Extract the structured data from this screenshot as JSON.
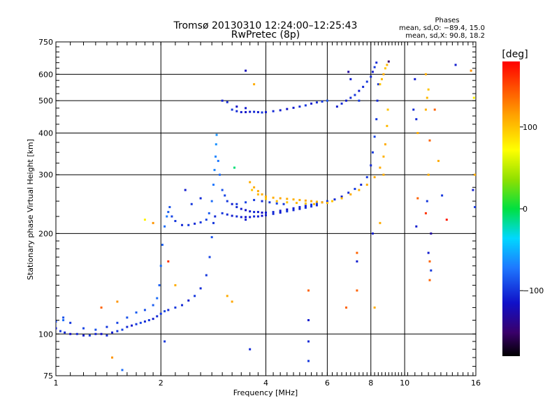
{
  "header": {
    "title_line1": "Tromsø 20130310 12:24:00–12:25:43",
    "title_line2": "RwPretec (8p)",
    "phases_title": "Phases",
    "phases_o": "mean, sd,O: −89.4, 15.0",
    "phases_x": "mean, sd,X:  90.8, 18.2"
  },
  "colorbar": {
    "unit_label": "[deg]",
    "ticks": [
      {
        "value": 100,
        "label": "100"
      },
      {
        "value": 0,
        "label": "0"
      },
      {
        "value": -100,
        "label": "−100"
      }
    ],
    "range": [
      -180,
      180
    ]
  },
  "chart_data": {
    "type": "scatter",
    "title": "Tromsø 20130310 12:24:00–12:25:43",
    "subtitle": "RwPretec (8p)",
    "xlabel": "Frequency [MHz]",
    "ylabel": "Stationary phase Virtual Height [km]",
    "xscale": "log",
    "yscale": "log",
    "xlim": [
      1,
      16
    ],
    "ylim": [
      75,
      750
    ],
    "xticks": [
      {
        "value": 1,
        "label": "1"
      },
      {
        "value": 2,
        "label": "2"
      },
      {
        "value": 4,
        "label": "4"
      },
      {
        "value": 6,
        "label": "6"
      },
      {
        "value": 8,
        "label": "8"
      },
      {
        "value": 10,
        "label": "10"
      },
      {
        "value": 16,
        "label": "16"
      }
    ],
    "yticks": [
      {
        "value": 75,
        "label": "75"
      },
      {
        "value": 100,
        "label": "100"
      },
      {
        "value": 200,
        "label": "200"
      },
      {
        "value": 300,
        "label": "300"
      },
      {
        "value": 400,
        "label": "400"
      },
      {
        "value": 500,
        "label": "500"
      },
      {
        "value": 600,
        "label": "600"
      },
      {
        "value": 750,
        "label": "750"
      }
    ],
    "x_gridlines": [
      1,
      2,
      4,
      6,
      8,
      10,
      16
    ],
    "y_gridlines": [
      75,
      100,
      200,
      300,
      400,
      500,
      600,
      750
    ],
    "grid": true,
    "color_by": "phase [deg]",
    "points": [
      [
        1.0,
        104,
        -110
      ],
      [
        1.03,
        102,
        -100
      ],
      [
        1.06,
        101,
        -105
      ],
      [
        1.1,
        100,
        -115
      ],
      [
        1.15,
        100,
        -105
      ],
      [
        1.2,
        99,
        -110
      ],
      [
        1.25,
        99,
        -100
      ],
      [
        1.3,
        100,
        -108
      ],
      [
        1.35,
        100,
        -115
      ],
      [
        1.4,
        99,
        -105
      ],
      [
        1.45,
        101,
        -110
      ],
      [
        1.5,
        102,
        -100
      ],
      [
        1.55,
        103,
        -95
      ],
      [
        1.6,
        105,
        -105
      ],
      [
        1.65,
        106,
        -110
      ],
      [
        1.7,
        107,
        -100
      ],
      [
        1.75,
        108,
        -95
      ],
      [
        1.8,
        109,
        -105
      ],
      [
        1.85,
        110,
        -100
      ],
      [
        1.9,
        111,
        -110
      ],
      [
        1.95,
        113,
        -105
      ],
      [
        2.0,
        115,
        -100
      ],
      [
        2.05,
        117,
        -95
      ],
      [
        2.1,
        118,
        -105
      ],
      [
        2.2,
        120,
        -100
      ],
      [
        2.3,
        122,
        -105
      ],
      [
        2.4,
        126,
        -110
      ],
      [
        2.5,
        130,
        -100
      ],
      [
        2.6,
        137,
        -105
      ],
      [
        2.7,
        150,
        -100
      ],
      [
        2.76,
        170,
        -95
      ],
      [
        2.8,
        195,
        -90
      ],
      [
        2.83,
        215,
        -100
      ],
      [
        2.86,
        225,
        -105
      ],
      [
        1.0,
        109,
        -95
      ],
      [
        1.05,
        112,
        -90
      ],
      [
        1.1,
        108,
        -100
      ],
      [
        1.2,
        104,
        -95
      ],
      [
        1.3,
        103,
        -90
      ],
      [
        1.4,
        105,
        -100
      ],
      [
        1.5,
        108,
        -95
      ],
      [
        1.6,
        112,
        -90
      ],
      [
        1.7,
        116,
        -85
      ],
      [
        1.8,
        118,
        -90
      ],
      [
        1.9,
        122,
        -85
      ],
      [
        1.95,
        128,
        -80
      ],
      [
        1.98,
        140,
        -85
      ],
      [
        2.0,
        160,
        -80
      ],
      [
        2.02,
        185,
        -85
      ],
      [
        2.05,
        210,
        -80
      ],
      [
        2.08,
        225,
        -75
      ],
      [
        2.1,
        232,
        -85
      ],
      [
        2.12,
        240,
        -90
      ],
      [
        2.15,
        225,
        -95
      ],
      [
        2.2,
        218,
        -100
      ],
      [
        2.3,
        212,
        -105
      ],
      [
        2.4,
        212,
        -100
      ],
      [
        2.5,
        214,
        -105
      ],
      [
        2.6,
        216,
        -100
      ],
      [
        2.7,
        220,
        -95
      ],
      [
        2.75,
        230,
        -85
      ],
      [
        2.8,
        250,
        -80
      ],
      [
        2.83,
        280,
        -75
      ],
      [
        2.85,
        310,
        -70
      ],
      [
        2.87,
        340,
        -70
      ],
      [
        2.88,
        370,
        -65
      ],
      [
        2.89,
        395,
        -65
      ],
      [
        2.92,
        330,
        -75
      ],
      [
        2.95,
        300,
        -80
      ],
      [
        3.0,
        270,
        -90
      ],
      [
        3.05,
        260,
        -95
      ],
      [
        3.1,
        250,
        -100
      ],
      [
        3.2,
        245,
        -110
      ],
      [
        3.3,
        240,
        -105
      ],
      [
        3.4,
        237,
        -110
      ],
      [
        3.5,
        235,
        -115
      ],
      [
        3.6,
        233,
        -110
      ],
      [
        3.7,
        232,
        -105
      ],
      [
        3.8,
        232,
        -110
      ],
      [
        3.9,
        231,
        -115
      ],
      [
        4.0,
        231,
        -110
      ],
      [
        4.2,
        232,
        -105
      ],
      [
        4.4,
        234,
        -110
      ],
      [
        4.6,
        236,
        -115
      ],
      [
        4.8,
        238,
        -110
      ],
      [
        5.0,
        240,
        -105
      ],
      [
        5.2,
        242,
        -110
      ],
      [
        5.4,
        244,
        -100
      ],
      [
        5.6,
        246,
        -95
      ],
      [
        5.8,
        248,
        -90
      ],
      [
        6.0,
        250,
        -100
      ],
      [
        6.3,
        253,
        -105
      ],
      [
        6.6,
        258,
        -110
      ],
      [
        6.9,
        265,
        -105
      ],
      [
        7.2,
        272,
        -100
      ],
      [
        7.5,
        280,
        -105
      ],
      [
        7.8,
        295,
        -100
      ],
      [
        8.0,
        320,
        -105
      ],
      [
        8.1,
        350,
        -100
      ],
      [
        8.2,
        390,
        -95
      ],
      [
        8.3,
        440,
        -100
      ],
      [
        8.35,
        500,
        -105
      ],
      [
        8.4,
        560,
        -100
      ],
      [
        3.0,
        230,
        -100
      ],
      [
        3.1,
        228,
        -105
      ],
      [
        3.2,
        226,
        -110
      ],
      [
        3.3,
        225,
        -105
      ],
      [
        3.4,
        224,
        -110
      ],
      [
        3.5,
        224,
        -115
      ],
      [
        3.6,
        224,
        -110
      ],
      [
        3.7,
        225,
        -105
      ],
      [
        3.8,
        225,
        -110
      ],
      [
        3.9,
        226,
        -115
      ],
      [
        4.0,
        227,
        -110
      ],
      [
        4.2,
        229,
        -105
      ],
      [
        4.4,
        231,
        -110
      ],
      [
        4.6,
        233,
        -100
      ],
      [
        4.8,
        235,
        -105
      ],
      [
        5.0,
        237,
        -110
      ],
      [
        5.2,
        239,
        -105
      ],
      [
        5.4,
        241,
        -100
      ],
      [
        5.6,
        243,
        -105
      ],
      [
        3.3,
        245,
        -100
      ],
      [
        3.5,
        248,
        -95
      ],
      [
        3.7,
        252,
        -100
      ],
      [
        3.9,
        250,
        -105
      ],
      [
        4.1,
        248,
        -100
      ],
      [
        4.3,
        246,
        -95
      ],
      [
        4.5,
        245,
        -100
      ],
      [
        3.6,
        285,
        110
      ],
      [
        3.7,
        275,
        110
      ],
      [
        3.8,
        268,
        112
      ],
      [
        3.9,
        262,
        110
      ],
      [
        4.0,
        258,
        108
      ],
      [
        4.2,
        256,
        110
      ],
      [
        4.4,
        255,
        112
      ],
      [
        4.6,
        254,
        110
      ],
      [
        4.8,
        253,
        108
      ],
      [
        5.0,
        252,
        110
      ],
      [
        5.2,
        251,
        112
      ],
      [
        5.4,
        250,
        110
      ],
      [
        5.6,
        249,
        108
      ],
      [
        5.8,
        248,
        110
      ],
      [
        6.0,
        247,
        105
      ],
      [
        3.65,
        270,
        100
      ],
      [
        3.8,
        262,
        105
      ],
      [
        4.0,
        254,
        100
      ],
      [
        4.3,
        250,
        105
      ],
      [
        4.6,
        248,
        100
      ],
      [
        4.9,
        247,
        105
      ],
      [
        5.2,
        246,
        100
      ],
      [
        5.5,
        245,
        105
      ],
      [
        6.2,
        250,
        100
      ],
      [
        6.6,
        255,
        105
      ],
      [
        7.0,
        262,
        110
      ],
      [
        7.4,
        270,
        108
      ],
      [
        7.8,
        280,
        110
      ],
      [
        8.2,
        295,
        112
      ],
      [
        8.5,
        315,
        110
      ],
      [
        8.7,
        340,
        108
      ],
      [
        8.8,
        370,
        110
      ],
      [
        8.9,
        420,
        105
      ],
      [
        8.95,
        470,
        100
      ],
      [
        3.2,
        470,
        -100
      ],
      [
        3.3,
        465,
        -105
      ],
      [
        3.4,
        462,
        -110
      ],
      [
        3.5,
        462,
        -115
      ],
      [
        3.6,
        463,
        -110
      ],
      [
        3.7,
        463,
        -105
      ],
      [
        3.8,
        462,
        -110
      ],
      [
        3.9,
        461,
        -100
      ],
      [
        4.0,
        462,
        -110
      ],
      [
        4.2,
        465,
        -105
      ],
      [
        4.4,
        468,
        -110
      ],
      [
        4.6,
        472,
        -115
      ],
      [
        4.8,
        476,
        -110
      ],
      [
        5.0,
        480,
        -105
      ],
      [
        5.2,
        484,
        -100
      ],
      [
        5.4,
        490,
        -110
      ],
      [
        5.6,
        494,
        -105
      ],
      [
        5.8,
        497,
        -100
      ],
      [
        6.0,
        500,
        -90
      ],
      [
        3.0,
        500,
        -110
      ],
      [
        3.1,
        495,
        -105
      ],
      [
        3.3,
        480,
        -115
      ],
      [
        3.5,
        475,
        -110
      ],
      [
        6.4,
        480,
        -110
      ],
      [
        6.6,
        490,
        -105
      ],
      [
        6.8,
        500,
        -110
      ],
      [
        7.0,
        510,
        -105
      ],
      [
        7.2,
        520,
        -100
      ],
      [
        7.4,
        535,
        -110
      ],
      [
        7.6,
        550,
        -105
      ],
      [
        7.8,
        570,
        -100
      ],
      [
        8.0,
        590,
        -105
      ],
      [
        8.1,
        610,
        -110
      ],
      [
        8.2,
        630,
        -100
      ],
      [
        8.3,
        650,
        -105
      ],
      [
        8.5,
        560,
        100
      ],
      [
        8.6,
        580,
        105
      ],
      [
        8.7,
        600,
        110
      ],
      [
        8.8,
        625,
        100
      ],
      [
        8.9,
        640,
        105
      ],
      [
        9.0,
        655,
        -150
      ],
      [
        1.05,
        110,
        -80
      ],
      [
        1.35,
        120,
        140
      ],
      [
        1.5,
        125,
        120
      ],
      [
        1.45,
        85,
        120
      ],
      [
        1.55,
        78,
        -80
      ],
      [
        1.8,
        220,
        80
      ],
      [
        1.9,
        215,
        120
      ],
      [
        2.05,
        95,
        -100
      ],
      [
        2.1,
        165,
        160
      ],
      [
        2.2,
        140,
        110
      ],
      [
        2.35,
        270,
        -110
      ],
      [
        2.45,
        245,
        -100
      ],
      [
        2.6,
        255,
        -105
      ],
      [
        3.1,
        130,
        110
      ],
      [
        3.2,
        125,
        112
      ],
      [
        3.25,
        315,
        -10
      ],
      [
        3.5,
        615,
        -120
      ],
      [
        3.7,
        560,
        110
      ],
      [
        3.6,
        90,
        -105
      ],
      [
        3.5,
        220,
        -110
      ],
      [
        5.3,
        135,
        140
      ],
      [
        5.3,
        110,
        -110
      ],
      [
        5.3,
        95,
        -105
      ],
      [
        5.3,
        83,
        -100
      ],
      [
        6.8,
        120,
        140
      ],
      [
        7.3,
        175,
        140
      ],
      [
        7.3,
        165,
        -110
      ],
      [
        7.3,
        135,
        140
      ],
      [
        6.9,
        610,
        -130
      ],
      [
        7.0,
        580,
        -110
      ],
      [
        7.4,
        500,
        -100
      ],
      [
        8.1,
        200,
        -110
      ],
      [
        8.2,
        120,
        110
      ],
      [
        8.5,
        215,
        110
      ],
      [
        8.7,
        300,
        110
      ],
      [
        10.6,
        470,
        -105
      ],
      [
        10.8,
        440,
        -105
      ],
      [
        10.9,
        400,
        110
      ],
      [
        10.8,
        210,
        -110
      ],
      [
        10.9,
        255,
        140
      ],
      [
        10.7,
        580,
        -110
      ],
      [
        11.5,
        600,
        110
      ],
      [
        11.7,
        540,
        100
      ],
      [
        11.6,
        510,
        105
      ],
      [
        11.5,
        470,
        108
      ],
      [
        11.8,
        380,
        140
      ],
      [
        11.7,
        300,
        110
      ],
      [
        11.6,
        250,
        -100
      ],
      [
        11.5,
        230,
        160
      ],
      [
        11.9,
        200,
        -130
      ],
      [
        11.7,
        175,
        -110
      ],
      [
        11.8,
        165,
        140
      ],
      [
        11.9,
        155,
        -100
      ],
      [
        11.8,
        145,
        140
      ],
      [
        12.2,
        470,
        140
      ],
      [
        12.5,
        330,
        110
      ],
      [
        12.8,
        260,
        -100
      ],
      [
        13.2,
        220,
        170
      ],
      [
        14.0,
        640,
        -110
      ],
      [
        15.5,
        615,
        120
      ],
      [
        15.8,
        510,
        80
      ],
      [
        15.9,
        300,
        110
      ],
      [
        15.7,
        270,
        -110
      ],
      [
        15.9,
        240,
        -100
      ]
    ]
  }
}
